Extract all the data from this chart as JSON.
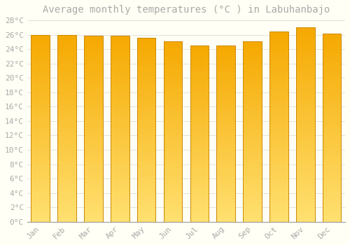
{
  "title": "Average monthly temperatures (°C ) in Labuhanbajo",
  "months": [
    "Jan",
    "Feb",
    "Mar",
    "Apr",
    "May",
    "Jun",
    "Jul",
    "Aug",
    "Sep",
    "Oct",
    "Nov",
    "Dec"
  ],
  "values": [
    26.0,
    26.0,
    25.9,
    25.9,
    25.6,
    25.1,
    24.5,
    24.5,
    25.1,
    26.4,
    27.0,
    26.2
  ],
  "bar_color_top": "#F5A800",
  "bar_color_bottom": "#FFE070",
  "bar_edge_color": "#CC8800",
  "background_color": "#FFFFF5",
  "grid_color": "#DDDDDD",
  "text_color": "#AAAAAA",
  "ylim": [
    0,
    28
  ],
  "ytick_step": 2,
  "title_fontsize": 10,
  "tick_fontsize": 8,
  "bar_width": 0.7,
  "gradient_steps": 100
}
